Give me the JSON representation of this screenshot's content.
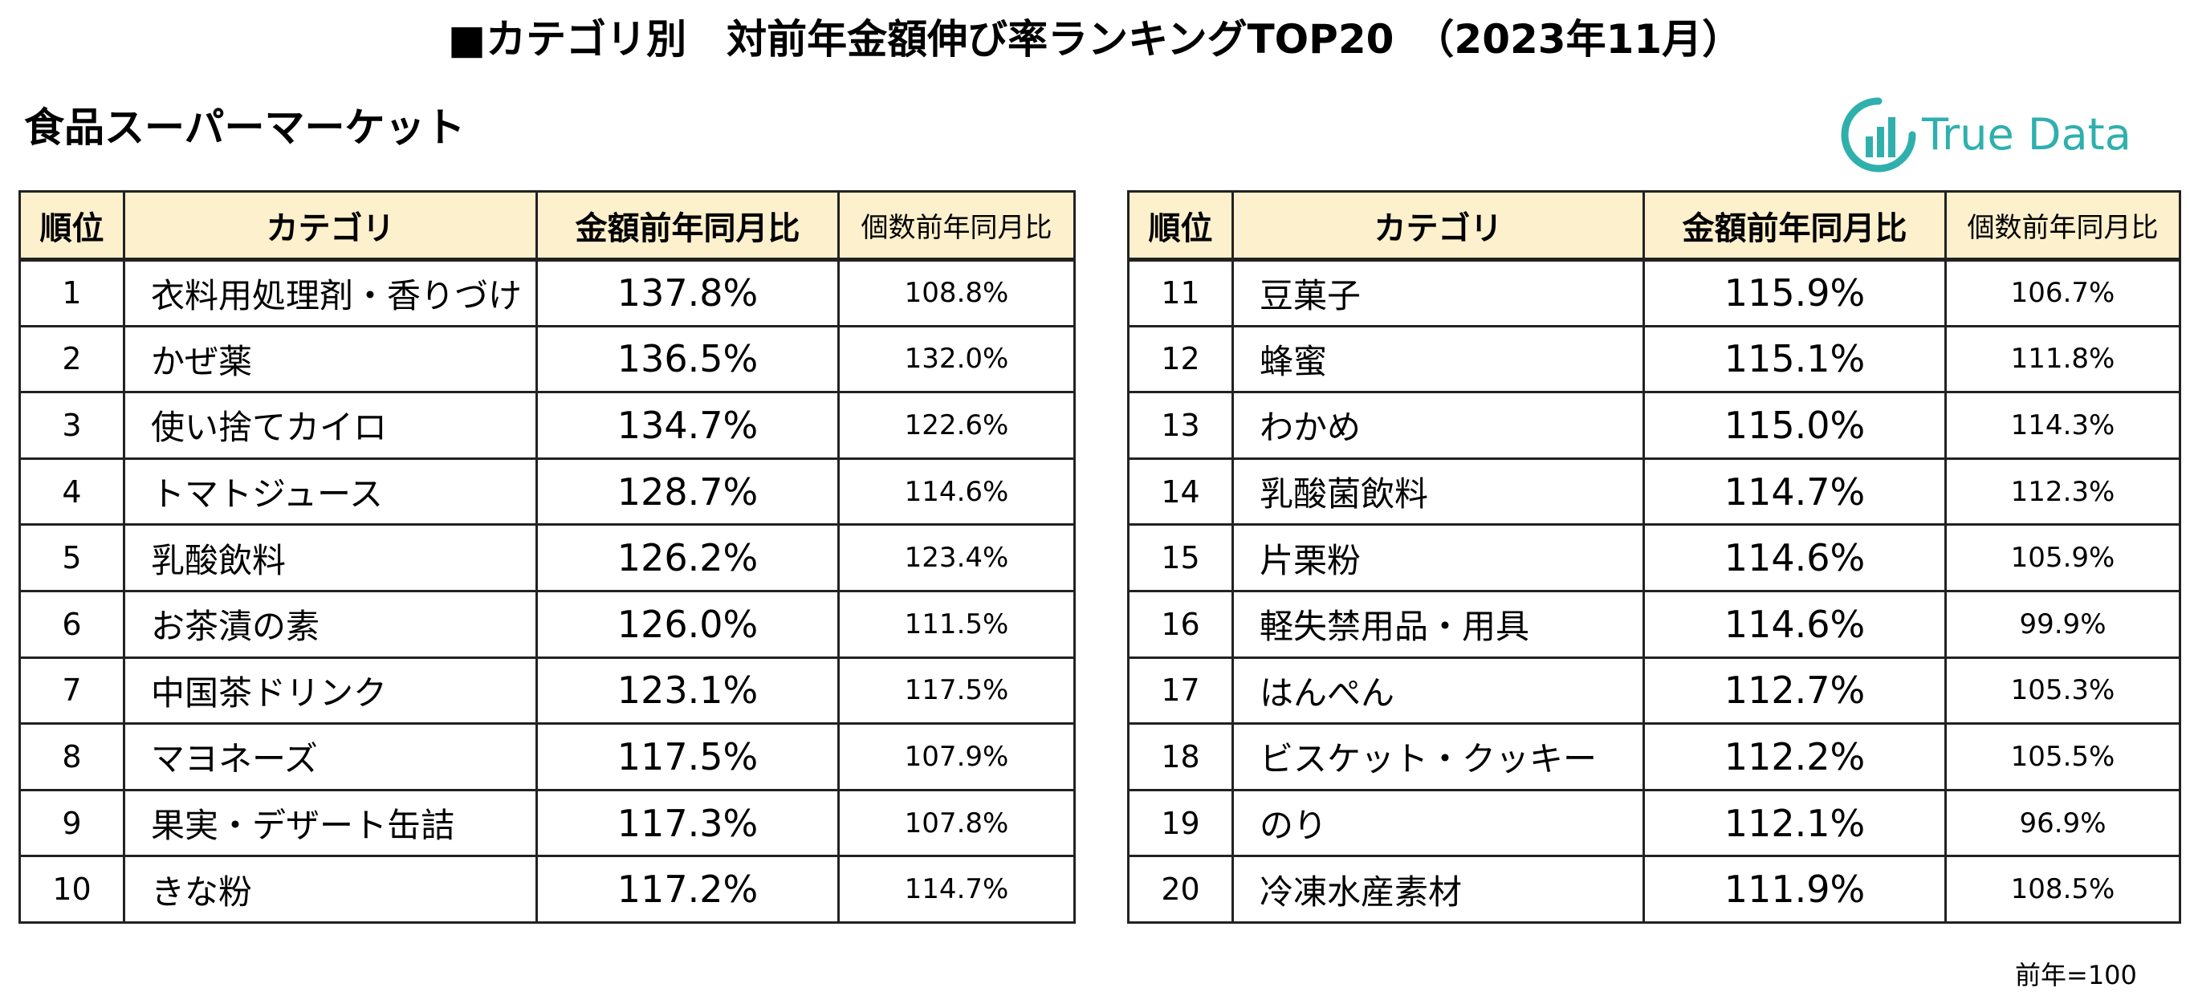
{
  "title": "■カテゴリ別　対前年金額伸び率ランキングTOP20　（2023年11月）",
  "subtitle": "食品スーパーマーケット",
  "logo": {
    "text": "True Data",
    "color": "#2fb0ad",
    "icon": "bar-chart-circle-icon"
  },
  "columns": {
    "rank": "順位",
    "category": "カテゴリ",
    "amount": "金額前年同月比",
    "quantity": "個数前年同月比"
  },
  "left_rows": [
    {
      "rank": "1",
      "category": "衣料用処理剤・香りづけ",
      "amount": "137.8%",
      "quantity": "108.8%"
    },
    {
      "rank": "2",
      "category": "かぜ薬",
      "amount": "136.5%",
      "quantity": "132.0%"
    },
    {
      "rank": "3",
      "category": "使い捨てカイロ",
      "amount": "134.7%",
      "quantity": "122.6%"
    },
    {
      "rank": "4",
      "category": "トマトジュース",
      "amount": "128.7%",
      "quantity": "114.6%"
    },
    {
      "rank": "5",
      "category": "乳酸飲料",
      "amount": "126.2%",
      "quantity": "123.4%"
    },
    {
      "rank": "6",
      "category": "お茶漬の素",
      "amount": "126.0%",
      "quantity": "111.5%"
    },
    {
      "rank": "7",
      "category": "中国茶ドリンク",
      "amount": "123.1%",
      "quantity": "117.5%"
    },
    {
      "rank": "8",
      "category": "マヨネーズ",
      "amount": "117.5%",
      "quantity": "107.9%"
    },
    {
      "rank": "9",
      "category": "果実・デザート缶詰",
      "amount": "117.3%",
      "quantity": "107.8%"
    },
    {
      "rank": "10",
      "category": "きな粉",
      "amount": "117.2%",
      "quantity": "114.7%"
    }
  ],
  "right_rows": [
    {
      "rank": "11",
      "category": "豆菓子",
      "amount": "115.9%",
      "quantity": "106.7%"
    },
    {
      "rank": "12",
      "category": "蜂蜜",
      "amount": "115.1%",
      "quantity": "111.8%"
    },
    {
      "rank": "13",
      "category": "わかめ",
      "amount": "115.0%",
      "quantity": "114.3%"
    },
    {
      "rank": "14",
      "category": "乳酸菌飲料",
      "amount": "114.7%",
      "quantity": "112.3%"
    },
    {
      "rank": "15",
      "category": "片栗粉",
      "amount": "114.6%",
      "quantity": "105.9%"
    },
    {
      "rank": "16",
      "category": "軽失禁用品・用具",
      "amount": "114.6%",
      "quantity": "99.9%"
    },
    {
      "rank": "17",
      "category": "はんぺん",
      "amount": "112.7%",
      "quantity": "105.3%"
    },
    {
      "rank": "18",
      "category": "ビスケット・クッキー",
      "amount": "112.2%",
      "quantity": "105.5%"
    },
    {
      "rank": "19",
      "category": "のり",
      "amount": "112.1%",
      "quantity": "96.9%"
    },
    {
      "rank": "20",
      "category": "冷凍水産素材",
      "amount": "111.9%",
      "quantity": "108.5%"
    }
  ],
  "note": "前年=100"
}
